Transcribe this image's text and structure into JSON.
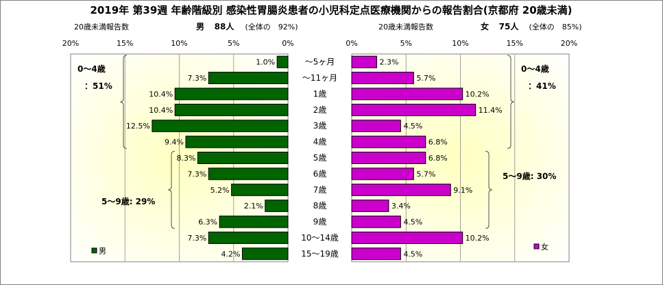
{
  "title": "2019年 第39週 年齢階級別 感染性胃腸炎患者の小児科定点医療機関からの報告割合(京都府 20歳未満)",
  "chart_data": [
    {
      "type": "bar",
      "orientation": "horizontal",
      "direction": "right-to-left",
      "side": "male",
      "header": {
        "label": "20歳未満報告数",
        "sex": "男",
        "count": "88人",
        "share": "(全体の　92%)"
      },
      "xlim": [
        0,
        20
      ],
      "ticks": [
        "20%",
        "15%",
        "10%",
        "5%",
        "0%"
      ],
      "tick_values": [
        20,
        15,
        10,
        5,
        0
      ],
      "categories": [
        "～5ヶ月",
        "～11ヶ月",
        "1歳",
        "2歳",
        "3歳",
        "4歳",
        "5歳",
        "6歳",
        "7歳",
        "8歳",
        "9歳",
        "10～14歳",
        "15～19歳"
      ],
      "values": [
        1.0,
        7.3,
        10.4,
        10.4,
        12.5,
        9.4,
        8.3,
        7.3,
        5.2,
        2.1,
        6.3,
        7.3,
        4.2
      ],
      "value_labels": [
        "1.0%",
        "7.3%",
        "10.4%",
        "10.4%",
        "12.5%",
        "9.4%",
        "8.3%",
        "7.3%",
        "5.2%",
        "2.1%",
        "6.3%",
        "7.3%",
        "4.2%"
      ],
      "series": [
        {
          "name": "男",
          "color": "#006400"
        }
      ],
      "annotations": [
        {
          "text_lines": [
            "0～4歳",
            "：51%"
          ],
          "from": 0,
          "to": 5
        },
        {
          "text_lines": [
            "5～9歳: 29%"
          ],
          "from": 6,
          "to": 10
        }
      ],
      "grid": true,
      "legend": "bottom-left"
    },
    {
      "type": "bar",
      "orientation": "horizontal",
      "direction": "left-to-right",
      "side": "female",
      "header": {
        "label": "20歳未満報告数",
        "sex": "女",
        "count": "75人",
        "share": "(全体の　85%)"
      },
      "xlim": [
        0,
        20
      ],
      "ticks": [
        "0%",
        "5%",
        "10%",
        "15%",
        "20%"
      ],
      "tick_values": [
        0,
        5,
        10,
        15,
        20
      ],
      "categories": [
        "～5ヶ月",
        "～11ヶ月",
        "1歳",
        "2歳",
        "3歳",
        "4歳",
        "5歳",
        "6歳",
        "7歳",
        "8歳",
        "9歳",
        "10～14歳",
        "15～19歳"
      ],
      "values": [
        2.3,
        5.7,
        10.2,
        11.4,
        4.5,
        6.8,
        6.8,
        5.7,
        9.1,
        3.4,
        4.5,
        10.2,
        4.5
      ],
      "value_labels": [
        "2.3%",
        "5.7%",
        "10.2%",
        "11.4%",
        "4.5%",
        "6.8%",
        "6.8%",
        "5.7%",
        "9.1%",
        "3.4%",
        "4.5%",
        "10.2%",
        "4.5%"
      ],
      "series": [
        {
          "name": "女",
          "color": "#cc00cc"
        }
      ],
      "annotations": [
        {
          "text_lines": [
            "0～4歳",
            "：41%"
          ],
          "from": 0,
          "to": 5
        },
        {
          "text_lines": [
            "5～9歳: 30%"
          ],
          "from": 6,
          "to": 10
        }
      ],
      "grid": true,
      "legend": "bottom-left"
    }
  ],
  "colors": {
    "male_bar": "#006400",
    "female_bar": "#cc00cc",
    "plot_gradient_center": "#ffffc0",
    "plot_gradient_edge": "#ffffff",
    "gridline": "#a0a0a0"
  }
}
